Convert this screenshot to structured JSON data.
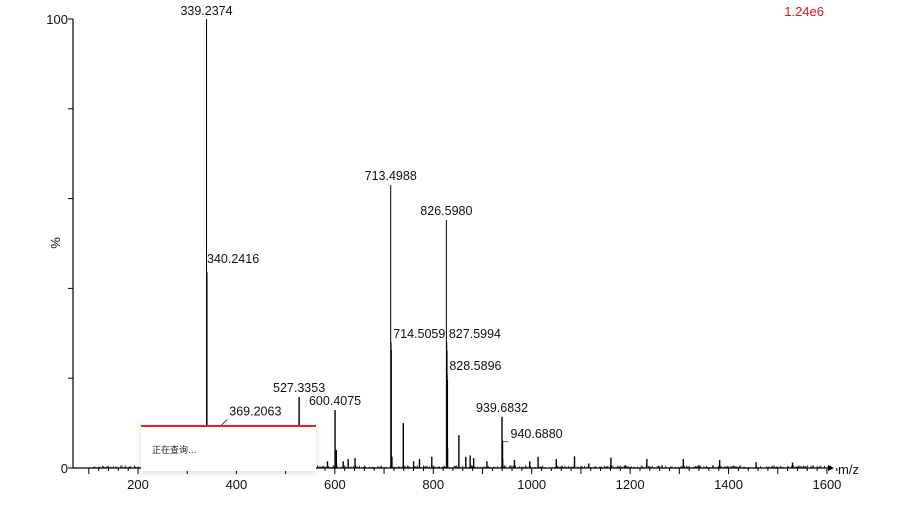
{
  "header": {
    "intensity": "1.24e6"
  },
  "chart_data": {
    "type": "bar",
    "subtype": "mass-spectrum",
    "xlabel": "m/z",
    "ylabel": "%",
    "xlim": [
      40,
      1620
    ],
    "ylim": [
      0,
      100
    ],
    "xticks": [
      200,
      400,
      600,
      800,
      1000,
      1200,
      1400,
      1600
    ],
    "yticks": [
      0,
      100
    ],
    "grid": false,
    "peaks": [
      {
        "mz": 339.2374,
        "intensity": 100,
        "label": "339.2374"
      },
      {
        "mz": 340.2416,
        "intensity": 43.6,
        "label": "340.2416"
      },
      {
        "mz": 369.2063,
        "intensity": 9.5,
        "label": "369.2063"
      },
      {
        "mz": 527.3353,
        "intensity": 15.8,
        "label": "527.3353"
      },
      {
        "mz": 600.4075,
        "intensity": 12.9,
        "label": "600.4075"
      },
      {
        "mz": 713.4988,
        "intensity": 63.0,
        "label": "713.4988"
      },
      {
        "mz": 714.5059,
        "intensity": 26.3,
        "label": "714.5059"
      },
      {
        "mz": 826.598,
        "intensity": 55.2,
        "label": "826.5980"
      },
      {
        "mz": 827.5994,
        "intensity": 26.3,
        "label": "827.5994"
      },
      {
        "mz": 828.5896,
        "intensity": 19.6,
        "label": "828.5896"
      },
      {
        "mz": 939.6832,
        "intensity": 11.4,
        "label": "939.6832"
      },
      {
        "mz": 940.688,
        "intensity": 6.0,
        "label": "940.6880"
      },
      {
        "mz": 603,
        "intensity": 4.0
      },
      {
        "mz": 617,
        "intensity": 1.5
      },
      {
        "mz": 627,
        "intensity": 2.0
      },
      {
        "mz": 641,
        "intensity": 2.2
      },
      {
        "mz": 585,
        "intensity": 1.5
      },
      {
        "mz": 716,
        "intensity": 2.5
      },
      {
        "mz": 739,
        "intensity": 10.0
      },
      {
        "mz": 760,
        "intensity": 1.5
      },
      {
        "mz": 772,
        "intensity": 2.0
      },
      {
        "mz": 797,
        "intensity": 2.5
      },
      {
        "mz": 829,
        "intensity": 4.5
      },
      {
        "mz": 852,
        "intensity": 7.3
      },
      {
        "mz": 866,
        "intensity": 2.5
      },
      {
        "mz": 875,
        "intensity": 2.8
      },
      {
        "mz": 882,
        "intensity": 2.2
      },
      {
        "mz": 909,
        "intensity": 1.5
      },
      {
        "mz": 941,
        "intensity": 2.0
      },
      {
        "mz": 965,
        "intensity": 1.8
      },
      {
        "mz": 996,
        "intensity": 1.5
      },
      {
        "mz": 1013,
        "intensity": 2.5
      },
      {
        "mz": 1050,
        "intensity": 2.0
      },
      {
        "mz": 1087,
        "intensity": 2.6
      },
      {
        "mz": 1116,
        "intensity": 1.0
      },
      {
        "mz": 1161,
        "intensity": 2.3
      },
      {
        "mz": 1234,
        "intensity": 2.0
      },
      {
        "mz": 1308,
        "intensity": 2.0
      },
      {
        "mz": 1382,
        "intensity": 1.8
      },
      {
        "mz": 1456,
        "intensity": 1.3
      },
      {
        "mz": 1530,
        "intensity": 1.2
      },
      {
        "mz": 1265,
        "intensity": 0.6
      },
      {
        "mz": 1190,
        "intensity": 0.6
      },
      {
        "mz": 1340,
        "intensity": 0.6
      }
    ]
  },
  "popup": {
    "text": "正在查询..."
  }
}
